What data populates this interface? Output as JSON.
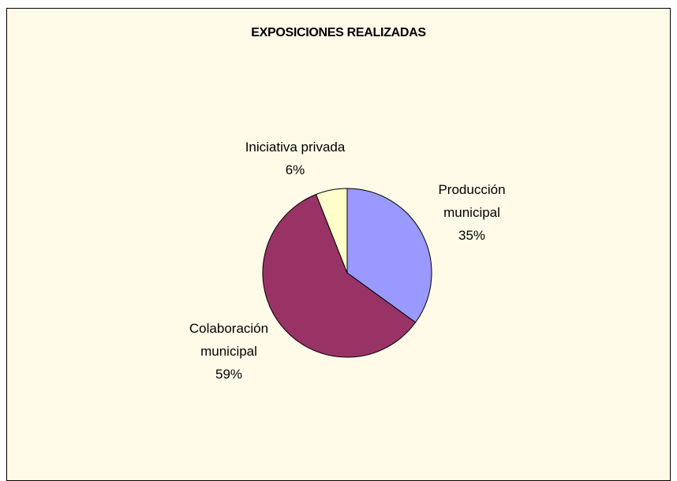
{
  "chart_data": {
    "type": "pie",
    "title": "EXPOSICIONES REALIZADAS",
    "categories": [
      "Producción municipal",
      "Colaboración municipal",
      "Iniciativa privada"
    ],
    "values": [
      35,
      59,
      6
    ],
    "value_labels": [
      "35%",
      "59%",
      "6%"
    ],
    "colors": [
      "#9999ff",
      "#993366",
      "#ffffcc"
    ]
  }
}
